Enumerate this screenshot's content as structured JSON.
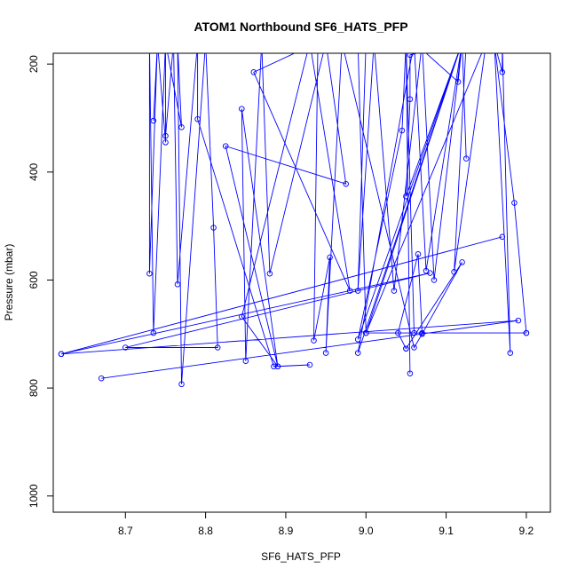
{
  "chart_data": {
    "type": "line",
    "title": "ATOM1 Northbound SF6_HATS_PFP",
    "xlabel": "SF6_HATS_PFP",
    "ylabel": "Pressure (mbar)",
    "xlim": [
      8.61,
      9.23
    ],
    "ylim": [
      1030,
      180
    ],
    "y_reversed": true,
    "xticks": [
      8.7,
      8.8,
      8.9,
      9.0,
      9.1,
      9.2
    ],
    "xtick_labels": [
      "8.7",
      "8.8",
      "8.9",
      "9.0",
      "9.1",
      "9.2"
    ],
    "yticks": [
      200,
      400,
      600,
      800,
      1000
    ],
    "ytick_labels": [
      "200",
      "400",
      "600",
      "800",
      "1000"
    ],
    "grid": false,
    "series": [
      {
        "color": "#0000ff",
        "marker": "open-circle",
        "points": [
          [
            8.67,
            782
          ],
          [
            9.19,
            675
          ],
          [
            8.62,
            737
          ],
          [
            9.17,
            520
          ],
          [
            8.62,
            737
          ],
          [
            9.08,
            587
          ],
          [
            8.7,
            725
          ],
          [
            8.815,
            725
          ],
          [
            8.81,
            503
          ],
          [
            8.8,
            160
          ],
          [
            8.77,
            793
          ],
          [
            8.765,
            160
          ],
          [
            8.77,
            317
          ],
          [
            8.75,
            160
          ],
          [
            8.75,
            345
          ],
          [
            8.74,
            160
          ],
          [
            8.735,
            305
          ],
          [
            8.74,
            160
          ],
          [
            8.73,
            588
          ],
          [
            8.73,
            160
          ],
          [
            8.735,
            698
          ],
          [
            8.75,
            160
          ],
          [
            8.75,
            333
          ],
          [
            8.76,
            160
          ],
          [
            8.765,
            608
          ],
          [
            8.79,
            160
          ],
          [
            8.79,
            302
          ],
          [
            8.885,
            760
          ],
          [
            8.93,
            757
          ],
          [
            8.89,
            760
          ],
          [
            8.845,
            283
          ],
          [
            8.85,
            750
          ],
          [
            8.87,
            160
          ],
          [
            8.88,
            588
          ],
          [
            8.95,
            160
          ],
          [
            8.975,
            422
          ],
          [
            8.825,
            352
          ],
          [
            8.89,
            760
          ],
          [
            8.845,
            668
          ],
          [
            8.93,
            160
          ],
          [
            8.98,
            620
          ],
          [
            8.86,
            215
          ],
          [
            8.94,
            160
          ],
          [
            8.935,
            712
          ],
          [
            8.955,
            558
          ],
          [
            8.95,
            735
          ],
          [
            8.97,
            160
          ],
          [
            9.06,
            725
          ],
          [
            9.07,
            700
          ],
          [
            9.12,
            567
          ],
          [
            9.05,
            727
          ],
          [
            9.05,
            727
          ],
          [
            9.04,
            698
          ],
          [
            9.065,
            552
          ],
          [
            9.07,
            698
          ],
          [
            9.2,
            698
          ],
          [
            9.0,
            698
          ],
          [
            8.99,
            160
          ],
          [
            9.05,
            160
          ],
          [
            9.055,
            773
          ],
          [
            9.05,
            160
          ],
          [
            9.05,
            160
          ],
          [
            9.05,
            160
          ],
          [
            9.0,
            160
          ],
          [
            8.99,
            620
          ],
          [
            9.01,
            160
          ],
          [
            9.035,
            620
          ],
          [
            9.07,
            160
          ],
          [
            9.085,
            600
          ],
          [
            9.12,
            160
          ],
          [
            9.125,
            375
          ],
          [
            9.12,
            160
          ],
          [
            9.055,
            183
          ],
          [
            9.055,
            265
          ],
          [
            9.05,
            445
          ],
          [
            9.12,
            160
          ],
          [
            8.99,
            710
          ],
          [
            9.045,
            323
          ],
          [
            9.05,
            160
          ],
          [
            9.06,
            698
          ],
          [
            9.05,
            160
          ],
          [
            9.06,
            160
          ],
          [
            9.075,
            583
          ],
          [
            9.12,
            160
          ],
          [
            9.115,
            233
          ],
          [
            9.06,
            160
          ],
          [
            8.99,
            735
          ],
          [
            9.12,
            160
          ],
          [
            9.0,
            698
          ],
          [
            9.15,
            160
          ],
          [
            9.11,
            585
          ],
          [
            9.125,
            160
          ],
          [
            9.16,
            160
          ],
          [
            9.18,
            735
          ],
          [
            9.17,
            160
          ],
          [
            9.17,
            215
          ],
          [
            9.16,
            160
          ],
          [
            9.185,
            457
          ],
          [
            9.2,
            698
          ]
        ]
      }
    ]
  }
}
